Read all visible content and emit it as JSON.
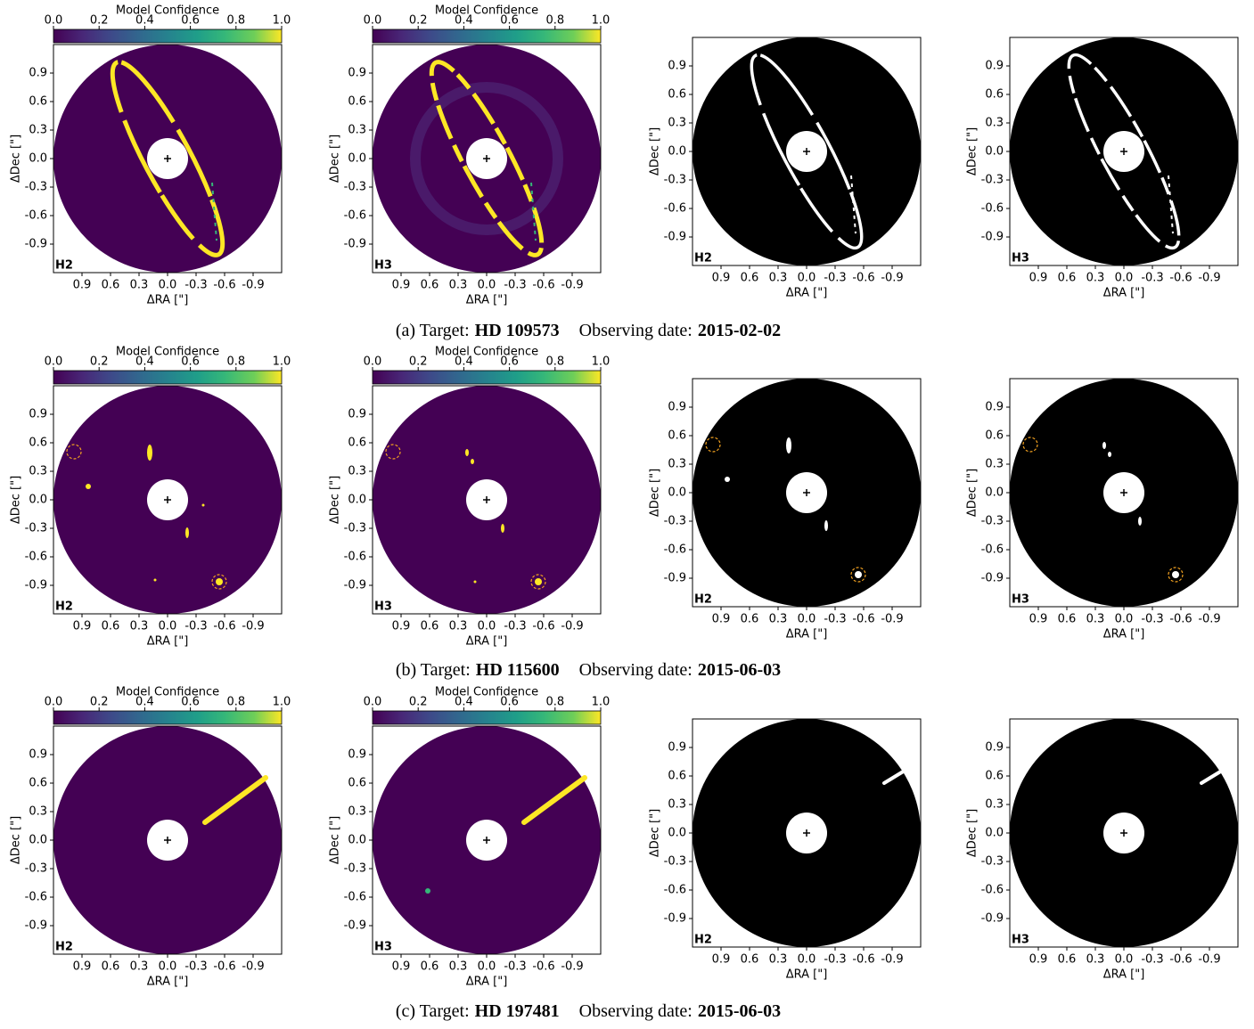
{
  "chart_data": [
    {
      "type": "image",
      "colormap": "viridis",
      "panel_label": "H2",
      "xlabel": "ΔRA [\"]",
      "ylabel": "ΔDec [\"]",
      "xlim": [
        1.2,
        -1.2
      ],
      "ylim": [
        -1.2,
        1.2
      ],
      "xticks": [
        0.9,
        0.6,
        0.3,
        {
          "value": 0,
          "label": "0.0"
        },
        -0.3,
        -0.6,
        -0.9
      ],
      "yticks": [
        -0.9,
        -0.6,
        -0.3,
        {
          "value": 0,
          "label": "0.0"
        },
        0.3,
        0.6,
        0.9
      ],
      "colorbar": {
        "label": "Model Confidence",
        "lim": [
          0,
          1
        ],
        "ticks": [
          {
            "value": 0,
            "label": "0.0"
          },
          0.2,
          0.4,
          0.6,
          0.8,
          {
            "value": 1,
            "label": "1.0"
          }
        ]
      }
    },
    {
      "type": "image",
      "colormap": "viridis",
      "panel_label": "H3",
      "xlabel": "ΔRA [\"]",
      "ylabel": "ΔDec [\"]",
      "xlim": [
        1.2,
        -1.2
      ],
      "ylim": [
        -1.2,
        1.2
      ],
      "xticks": [
        0.9,
        0.6,
        0.3,
        {
          "value": 0,
          "label": "0.0"
        },
        -0.3,
        -0.6,
        -0.9
      ],
      "yticks": [
        -0.9,
        -0.6,
        -0.3,
        {
          "value": 0,
          "label": "0.0"
        },
        0.3,
        0.6,
        0.9
      ],
      "colorbar": {
        "label": "Model Confidence",
        "lim": [
          0,
          1
        ],
        "ticks": [
          {
            "value": 0,
            "label": "0.0"
          },
          0.2,
          0.4,
          0.6,
          0.8,
          {
            "value": 1,
            "label": "1.0"
          }
        ]
      }
    },
    {
      "type": "image",
      "colormap": "binary",
      "panel_label": "H2",
      "xlabel": "ΔRA [\"]",
      "ylabel": "ΔDec [\"]",
      "xlim": [
        1.2,
        -1.2
      ],
      "ylim": [
        -1.2,
        1.2
      ],
      "xticks": [
        0.9,
        0.6,
        0.3,
        {
          "value": 0,
          "label": "0.0"
        },
        -0.3,
        -0.6,
        -0.9
      ],
      "yticks": [
        -0.9,
        -0.6,
        -0.3,
        {
          "value": 0,
          "label": "0.0"
        },
        0.3,
        0.6,
        0.9
      ]
    },
    {
      "type": "image",
      "colormap": "binary",
      "panel_label": "H3",
      "xlabel": "ΔRA [\"]",
      "ylabel": "ΔDec [\"]",
      "xlim": [
        1.2,
        -1.2
      ],
      "ylim": [
        -1.2,
        1.2
      ],
      "xticks": [
        0.9,
        0.6,
        0.3,
        {
          "value": 0,
          "label": "0.0"
        },
        -0.3,
        -0.6,
        -0.9
      ],
      "yticks": [
        -0.9,
        -0.6,
        -0.3,
        {
          "value": 0,
          "label": "0.0"
        },
        0.3,
        0.6,
        0.9
      ]
    },
    {
      "type": "image",
      "colormap": "viridis",
      "panel_label": "H2",
      "xlabel": "ΔRA [\"]",
      "ylabel": "ΔDec [\"]",
      "xlim": [
        1.2,
        -1.2
      ],
      "ylim": [
        -1.2,
        1.2
      ],
      "xticks": [
        0.9,
        0.6,
        0.3,
        {
          "value": 0,
          "label": "0.0"
        },
        -0.3,
        -0.6,
        -0.9
      ],
      "yticks": [
        -0.9,
        -0.6,
        -0.3,
        {
          "value": 0,
          "label": "0.0"
        },
        0.3,
        0.6,
        0.9
      ],
      "colorbar": {
        "label": "Model Confidence",
        "lim": [
          0,
          1
        ],
        "ticks": [
          {
            "value": 0,
            "label": "0.0"
          },
          0.2,
          0.4,
          0.6,
          0.8,
          {
            "value": 1,
            "label": "1.0"
          }
        ]
      }
    },
    {
      "type": "image",
      "colormap": "viridis",
      "panel_label": "H3",
      "xlabel": "ΔRA [\"]",
      "ylabel": "ΔDec [\"]",
      "xlim": [
        1.2,
        -1.2
      ],
      "ylim": [
        -1.2,
        1.2
      ],
      "xticks": [
        0.9,
        0.6,
        0.3,
        {
          "value": 0,
          "label": "0.0"
        },
        -0.3,
        -0.6,
        -0.9
      ],
      "yticks": [
        -0.9,
        -0.6,
        -0.3,
        {
          "value": 0,
          "label": "0.0"
        },
        0.3,
        0.6,
        0.9
      ],
      "colorbar": {
        "label": "Model Confidence",
        "lim": [
          0,
          1
        ],
        "ticks": [
          {
            "value": 0,
            "label": "0.0"
          },
          0.2,
          0.4,
          0.6,
          0.8,
          {
            "value": 1,
            "label": "1.0"
          }
        ]
      }
    },
    {
      "type": "image",
      "colormap": "binary",
      "panel_label": "H2",
      "xlabel": "ΔRA [\"]",
      "ylabel": "ΔDec [\"]",
      "xlim": [
        1.2,
        -1.2
      ],
      "ylim": [
        -1.2,
        1.2
      ],
      "xticks": [
        0.9,
        0.6,
        0.3,
        {
          "value": 0,
          "label": "0.0"
        },
        -0.3,
        -0.6,
        -0.9
      ],
      "yticks": [
        -0.9,
        -0.6,
        -0.3,
        {
          "value": 0,
          "label": "0.0"
        },
        0.3,
        0.6,
        0.9
      ]
    },
    {
      "type": "image",
      "colormap": "binary",
      "panel_label": "H3",
      "xlabel": "ΔRA [\"]",
      "ylabel": "ΔDec [\"]",
      "xlim": [
        1.2,
        -1.2
      ],
      "ylim": [
        -1.2,
        1.2
      ],
      "xticks": [
        0.9,
        0.6,
        0.3,
        {
          "value": 0,
          "label": "0.0"
        },
        -0.3,
        -0.6,
        -0.9
      ],
      "yticks": [
        -0.9,
        -0.6,
        -0.3,
        {
          "value": 0,
          "label": "0.0"
        },
        0.3,
        0.6,
        0.9
      ]
    },
    {
      "type": "image",
      "colormap": "viridis",
      "panel_label": "H2",
      "xlabel": "ΔRA [\"]",
      "ylabel": "ΔDec [\"]",
      "xlim": [
        1.2,
        -1.2
      ],
      "ylim": [
        -1.2,
        1.2
      ],
      "xticks": [
        0.9,
        0.6,
        0.3,
        {
          "value": 0,
          "label": "0.0"
        },
        -0.3,
        -0.6,
        -0.9
      ],
      "yticks": [
        -0.9,
        -0.6,
        -0.3,
        {
          "value": 0,
          "label": "0.0"
        },
        0.3,
        0.6,
        0.9
      ],
      "colorbar": {
        "label": "Model Confidence",
        "lim": [
          0,
          1
        ],
        "ticks": [
          {
            "value": 0,
            "label": "0.0"
          },
          0.2,
          0.4,
          0.6,
          0.8,
          {
            "value": 1,
            "label": "1.0"
          }
        ]
      }
    },
    {
      "type": "image",
      "colormap": "viridis",
      "panel_label": "H3",
      "xlabel": "ΔRA [\"]",
      "ylabel": "ΔDec [\"]",
      "xlim": [
        1.2,
        -1.2
      ],
      "ylim": [
        -1.2,
        1.2
      ],
      "xticks": [
        0.9,
        0.6,
        0.3,
        {
          "value": 0,
          "label": "0.0"
        },
        -0.3,
        -0.6,
        -0.9
      ],
      "yticks": [
        -0.9,
        -0.6,
        -0.3,
        {
          "value": 0,
          "label": "0.0"
        },
        0.3,
        0.6,
        0.9
      ],
      "colorbar": {
        "label": "Model Confidence",
        "lim": [
          0,
          1
        ],
        "ticks": [
          {
            "value": 0,
            "label": "0.0"
          },
          0.2,
          0.4,
          0.6,
          0.8,
          {
            "value": 1,
            "label": "1.0"
          }
        ]
      }
    },
    {
      "type": "image",
      "colormap": "binary",
      "panel_label": "H2",
      "xlabel": "ΔRA [\"]",
      "ylabel": "ΔDec [\"]",
      "xlim": [
        1.2,
        -1.2
      ],
      "ylim": [
        -1.2,
        1.2
      ],
      "xticks": [
        0.9,
        0.6,
        0.3,
        {
          "value": 0,
          "label": "0.0"
        },
        -0.3,
        -0.6,
        -0.9
      ],
      "yticks": [
        -0.9,
        -0.6,
        -0.3,
        {
          "value": 0,
          "label": "0.0"
        },
        0.3,
        0.6,
        0.9
      ]
    },
    {
      "type": "image",
      "colormap": "binary",
      "panel_label": "H3",
      "xlabel": "ΔRA [\"]",
      "ylabel": "ΔDec [\"]",
      "xlim": [
        1.2,
        -1.2
      ],
      "ylim": [
        -1.2,
        1.2
      ],
      "xticks": [
        0.9,
        0.6,
        0.3,
        {
          "value": 0,
          "label": "0.0"
        },
        -0.3,
        -0.6,
        -0.9
      ],
      "yticks": [
        -0.9,
        -0.6,
        -0.3,
        {
          "value": 0,
          "label": "0.0"
        },
        0.3,
        0.6,
        0.9
      ]
    }
  ],
  "captions": [
    {
      "prefix": "(a) Target:",
      "target": "HD 109573",
      "date_label": "Observing date:",
      "date": "2015-02-02"
    },
    {
      "prefix": "(b) Target:",
      "target": "HD 115600",
      "date_label": "Observing date:",
      "date": "2015-06-03"
    },
    {
      "prefix": "(c) Target:",
      "target": "HD 197481",
      "date_label": "Observing date:",
      "date": "2015-06-03"
    }
  ]
}
